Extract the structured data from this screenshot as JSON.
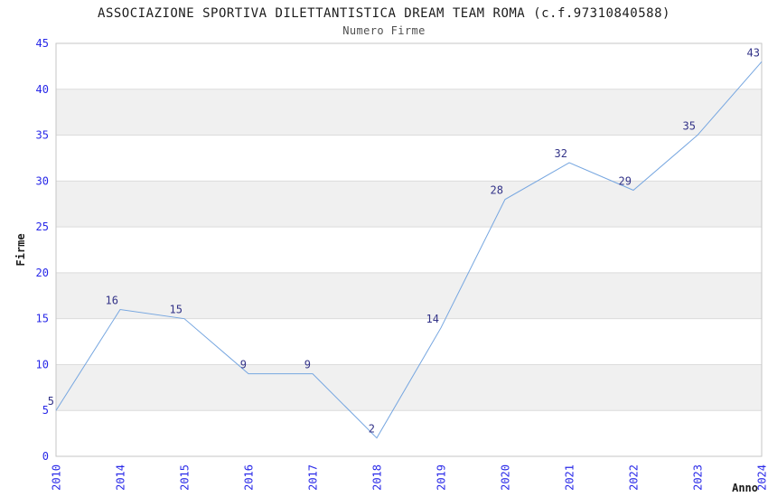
{
  "chart_data": {
    "type": "line",
    "title": "ASSOCIAZIONE SPORTIVA DILETTANTISTICA DREAM TEAM ROMA (c.f.97310840588)",
    "subtitle": "Numero Firme",
    "x": [
      "2010",
      "2014",
      "2015",
      "2016",
      "2017",
      "2018",
      "2019",
      "2020",
      "2021",
      "2022",
      "2023",
      "2024"
    ],
    "series": [
      {
        "name": "Firme",
        "values": [
          5,
          16,
          15,
          9,
          9,
          2,
          14,
          28,
          32,
          29,
          35,
          43
        ]
      }
    ],
    "xlabel": "Anno",
    "ylabel": "Firme",
    "ylim": [
      0,
      45
    ],
    "ytick_step": 5,
    "yticks": [
      0,
      5,
      10,
      15,
      20,
      25,
      30,
      35,
      40,
      45
    ],
    "grid": "horizontal-bands-alternating",
    "legend": "none",
    "markers": "none",
    "data_labels_visible": true,
    "colors": {
      "line": "#76a6e0",
      "data_label": "#333388",
      "tick_label": "#2828e8",
      "band_gray": "#f0f0f0",
      "band_white": "#ffffff",
      "grid_line": "#dcdcdc",
      "border": "#c6c6c6",
      "title": "#1c1c1c",
      "subtitle": "#4f4f4f",
      "axis_label": "#1c1c1c"
    }
  }
}
